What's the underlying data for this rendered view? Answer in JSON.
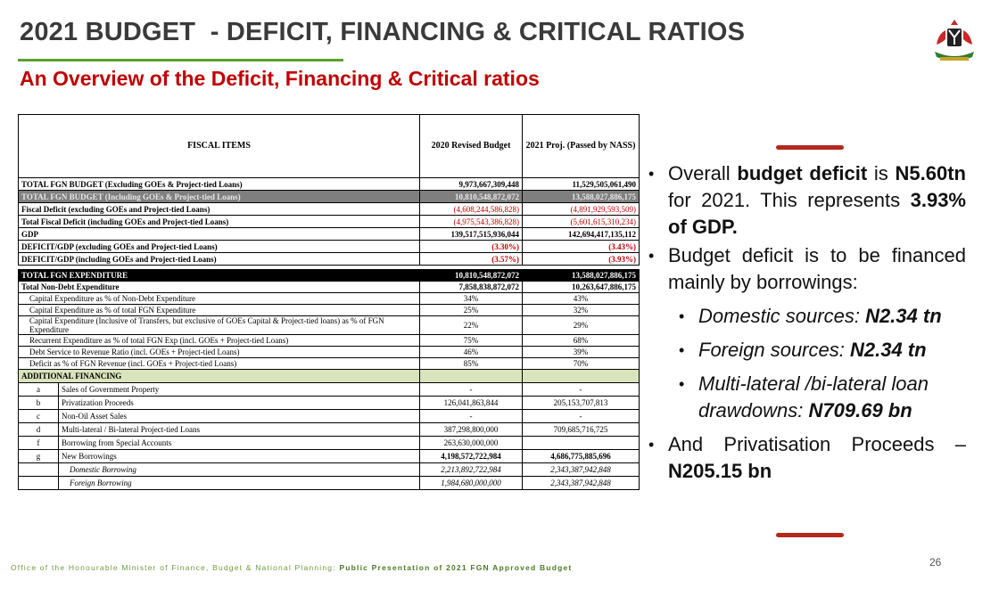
{
  "header": {
    "title": "2021 BUDGET  - DEFICIT, FINANCING & CRITICAL RATIOS",
    "subtitle": "An Overview of the Deficit, Financing & Critical ratios"
  },
  "table": {
    "columns": [
      "FISCAL ITEMS",
      "2020 Revised Budget",
      "2021 Proj. (Passed by NASS)"
    ],
    "summary": [
      [
        "TOTAL FGN BUDGET (Excluding GOEs & Project-tied Loans)",
        "9,973,667,309,448",
        "11,529,505,061,490"
      ],
      [
        "TOTAL FGN BUDGET (Including GOEs & Project-tied Loans)",
        "10,810,548,872,072",
        "13,588,027,886,175"
      ],
      [
        "Fiscal Deficit (excluding GOEs and Project-tied Loans)",
        "(4,608,244,586,828)",
        "(4,891,929,593,509)"
      ],
      [
        "Total Fiscal Deficit (including GOEs and Project-tied Loans)",
        "(4,975,543,386,828)",
        "(5,601,615,310,234)"
      ],
      [
        "GDP",
        "139,517,515,936,044",
        "142,694,417,135,112"
      ],
      [
        "DEFICIT/GDP (excluding GOEs and Project-tied Loans)",
        "(3.30%)",
        "(3.43%)"
      ],
      [
        "DEFICIT/GDP (including GOEs and Project-tied Loans)",
        "(3.57%)",
        "(3.93%)"
      ]
    ],
    "expenditure": [
      [
        "TOTAL FGN EXPENDITURE",
        "10,810,548,872,072",
        "13,588,027,886,175"
      ],
      [
        "Total Non-Debt Expenditure",
        "7,858,838,872,072",
        "10,263,647,886,175"
      ],
      [
        "Capital Expenditure as % of Non-Debt Expenditure",
        "34%",
        "43%"
      ],
      [
        "Capital Expenditure as % of total FGN Expenditure",
        "25%",
        "32%"
      ],
      [
        "Capital Expenditure (Inclusive of Transfers, but exclusive of GOEs Capital & Project-tied loans) as % of FGN Expenditure",
        "22%",
        "29%"
      ],
      [
        "Recurrent Expenditure as % of total FGN Exp (incl. GOEs + Project-tied Loans)",
        "75%",
        "68%"
      ],
      [
        "Debt Service to Revenue Ratio (incl. GOEs + Project-tied Loans)",
        "46%",
        "39%"
      ],
      [
        "Deficit as % of FGN Revenue (incl. GOEs + Project-tied Loans)",
        "85%",
        "70%"
      ]
    ],
    "financing_title": "ADDITIONAL FINANCING",
    "financing": [
      [
        "a",
        "Sales of Government Property",
        "-",
        "-"
      ],
      [
        "b",
        "Privatization Proceeds",
        "126,041,863,844",
        "205,153,707,813"
      ],
      [
        "c",
        "Non-Oil Asset Sales",
        "-",
        "-"
      ],
      [
        "d",
        "Multi-lateral / Bi-lateral Project-tied Loans",
        "387,298,800,000",
        "709,685,716,725"
      ],
      [
        "f",
        "Borrowing from Special Accounts",
        "263,630,000,000",
        null
      ],
      [
        "g",
        "New Borrowings",
        "4,198,572,722,984",
        "4,686,775,885,696"
      ],
      [
        null,
        "Domestic Borrowing",
        "2,213,892,722,984",
        "2,343,387,942,848"
      ],
      [
        null,
        "Foreign Borrowing",
        "1,984,680,000,000",
        "2,343,387,942,848"
      ]
    ]
  },
  "bullets": [
    {
      "parts": [
        "Overall ",
        "budget deficit",
        " is ",
        "N5.60tn",
        " for 2021. This represents ",
        "3.93% of GDP."
      ]
    },
    {
      "parts": [
        "Budget deficit is to be financed mainly by borrowings:"
      ],
      "sub": [
        [
          "Domestic sources: ",
          "N2.34 tn"
        ],
        [
          "Foreign sources: ",
          "N2.34 tn"
        ],
        [
          "Multi-lateral /bi-lateral loan drawdowns: ",
          "N709.69 bn"
        ]
      ]
    },
    {
      "parts": [
        "And Privatisation Proceeds – ",
        "N205.15 bn"
      ]
    }
  ],
  "footer": {
    "office": "Office of the Honourable Minister of Finance, Budget & National Planning: ",
    "event": "Public Presentation of 2021 FGN Approved Budget"
  },
  "page_number": "26"
}
